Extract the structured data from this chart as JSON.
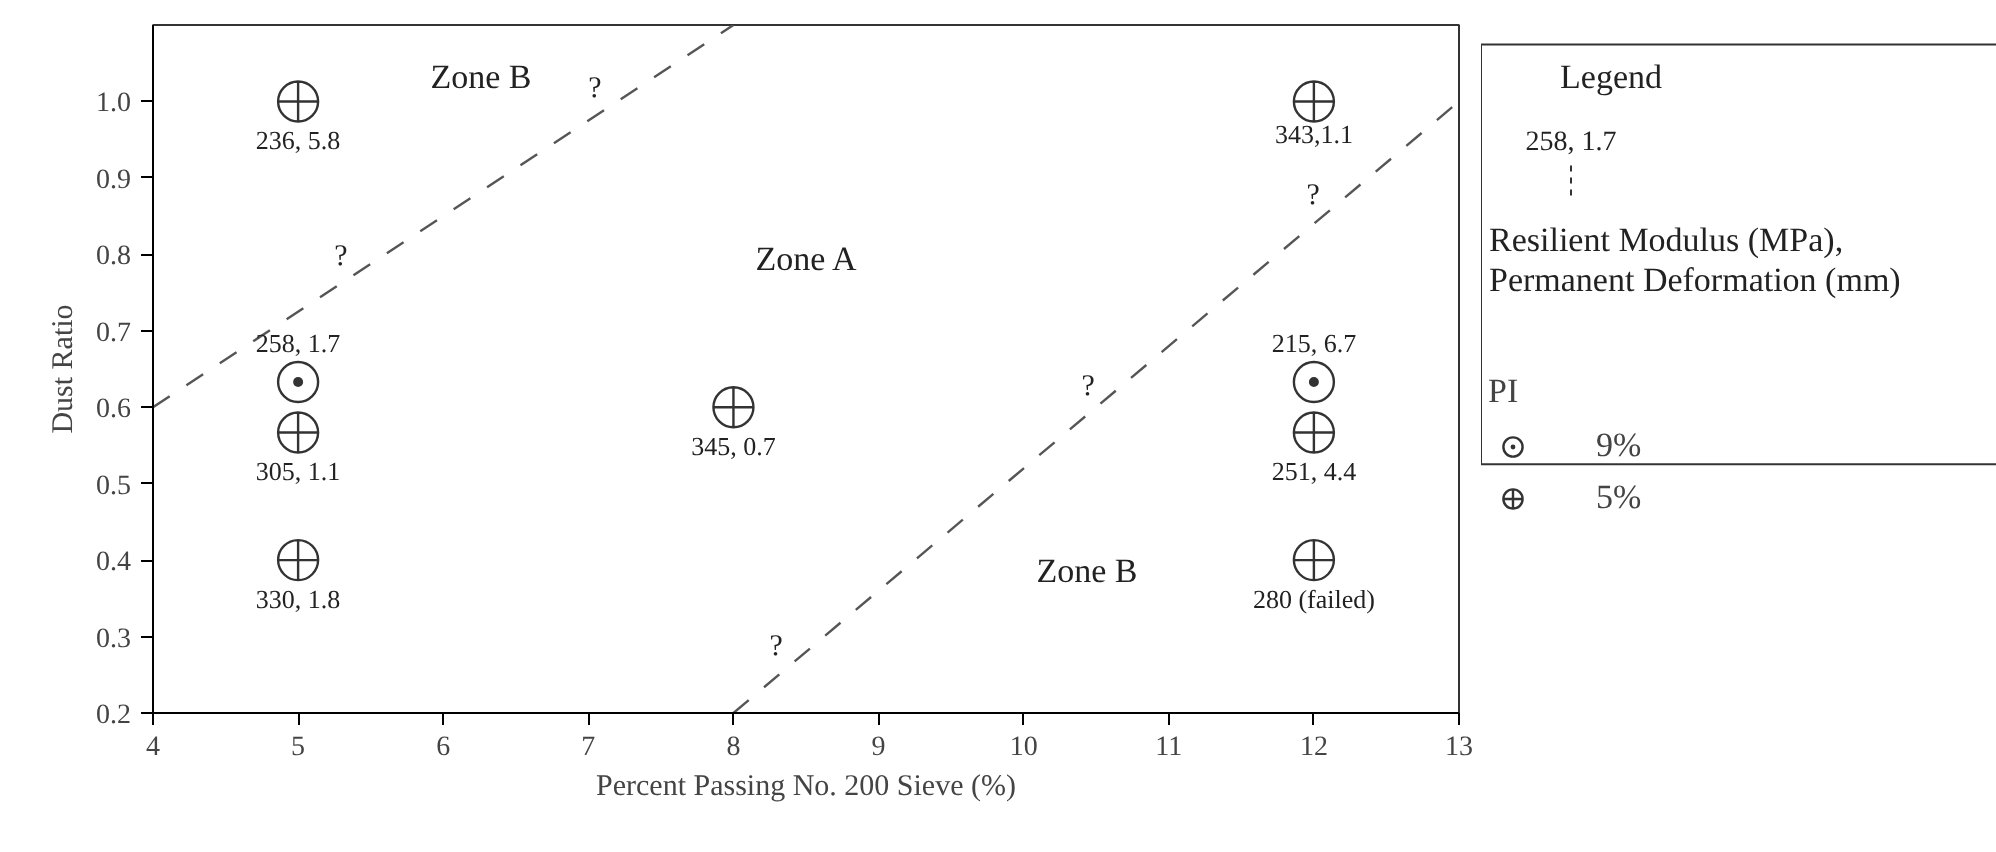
{
  "chart_data": {
    "type": "scatter",
    "xlabel": "Percent Passing No. 200 Sieve (%)",
    "ylabel": "Dust Ratio",
    "legend_title": "PI",
    "legend": "right",
    "grid": false,
    "xlim": [
      4,
      13
    ],
    "xticks": [
      4,
      5,
      6,
      7,
      8,
      9,
      10,
      11,
      12,
      13
    ],
    "ylim": [
      0.2,
      1.1
    ],
    "yticks": [
      0.2,
      0.3,
      0.4,
      0.5,
      0.6,
      0.7,
      0.8,
      0.9,
      {
        "value": 1.0,
        "label": "1.0"
      }
    ],
    "series": [
      {
        "name": "9%",
        "color": "#333333",
        "x": [
          5,
          12
        ],
        "values": [
          0.633,
          0.633
        ]
      },
      {
        "name": "5%",
        "color": "#333333",
        "x": [
          5,
          12,
          5,
          8,
          12,
          5,
          12
        ],
        "values": [
          1.0,
          1.0,
          0.567,
          0.6,
          0.567,
          0.4,
          0.4
        ]
      },
      {
        "type": "line",
        "color": "#555555",
        "line_style": "dashed",
        "x": [
          4,
          8
        ],
        "values": [
          0.6,
          1.1
        ]
      },
      {
        "type": "line",
        "color": "#555555",
        "line_style": "dashed",
        "x": [
          8,
          13
        ],
        "values": [
          0.2,
          1.0
        ]
      }
    ],
    "annotations": [
      "Legend",
      "258, 1.7",
      "Resilient Modulus (MPa),",
      "Permanent Deformation (mm)",
      "Zone B",
      "Zone A",
      "Zone B",
      {
        "text": "258, 1.7",
        "x": 5,
        "y": 0.633
      },
      {
        "text": "215, 6.7",
        "x": 12,
        "y": 0.633
      },
      {
        "text": "236, 5.8",
        "x": 5,
        "y": 1.0
      },
      {
        "text": "343,1.1",
        "x": 12,
        "y": 1.0
      },
      {
        "text": "305, 1.1",
        "x": 5,
        "y": 0.567
      },
      {
        "text": "345, 0.7",
        "x": 8,
        "y": 0.6
      },
      {
        "text": "251, 4.4",
        "x": 12,
        "y": 0.567
      },
      {
        "text": "330, 1.8",
        "x": 5,
        "y": 0.4
      },
      {
        "text": "280 (failed)",
        "x": 12,
        "y": 0.4
      },
      {
        "text": "?",
        "x": 7.1,
        "y": 0.99
      },
      {
        "text": "?",
        "x": 5.35,
        "y": 0.77
      },
      {
        "text": "?",
        "x": 12.05,
        "y": 0.85
      },
      {
        "text": "?",
        "x": 10.5,
        "y": 0.6
      },
      {
        "text": "?",
        "x": 8.35,
        "y": 0.26
      }
    ]
  }
}
